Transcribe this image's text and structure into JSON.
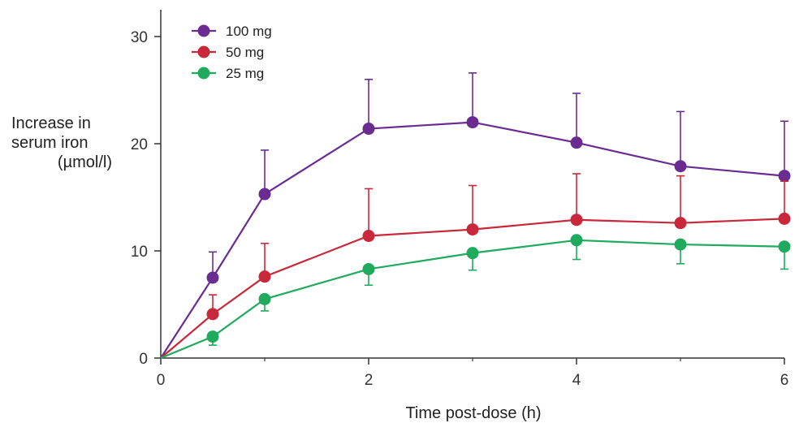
{
  "chart_data": {
    "type": "line",
    "title": "",
    "ylabel_lines": [
      "Increase in",
      "serum iron",
      "(µmol/l)"
    ],
    "xlabel": "Time post-dose (h)",
    "xlim": [
      0,
      6
    ],
    "ylim": [
      0,
      30
    ],
    "xticks": [
      0,
      2,
      4,
      6
    ],
    "yticks": [
      0,
      10,
      20,
      30
    ],
    "x_minor_ticks": [
      1,
      3,
      5
    ],
    "legend_position": "top-left",
    "series": [
      {
        "name": "100 mg",
        "color": "#6a2c91",
        "x": [
          0,
          0.5,
          1,
          2,
          3,
          4,
          5,
          6
        ],
        "y": [
          0,
          7.5,
          15.3,
          21.4,
          22.0,
          20.1,
          17.9,
          17.0
        ],
        "err_upper": [
          null,
          9.9,
          19.4,
          26.0,
          26.6,
          24.7,
          23.0,
          22.1
        ]
      },
      {
        "name": "50 mg",
        "color": "#c8283a",
        "x": [
          0,
          0.5,
          1,
          2,
          3,
          4,
          5,
          6
        ],
        "y": [
          0,
          4.1,
          7.6,
          11.4,
          12.0,
          12.9,
          12.6,
          13.0
        ],
        "err_upper": [
          null,
          5.9,
          10.7,
          15.8,
          16.1,
          17.2,
          17.0,
          16.5
        ]
      },
      {
        "name": "25 mg",
        "color": "#1faa5e",
        "x": [
          0,
          0.5,
          1,
          2,
          3,
          4,
          5,
          6
        ],
        "y": [
          0,
          2.0,
          5.5,
          8.3,
          9.8,
          11.0,
          10.6,
          10.4
        ],
        "err_lower": [
          null,
          1.2,
          4.4,
          6.8,
          8.2,
          9.2,
          8.8,
          8.3
        ]
      }
    ]
  }
}
